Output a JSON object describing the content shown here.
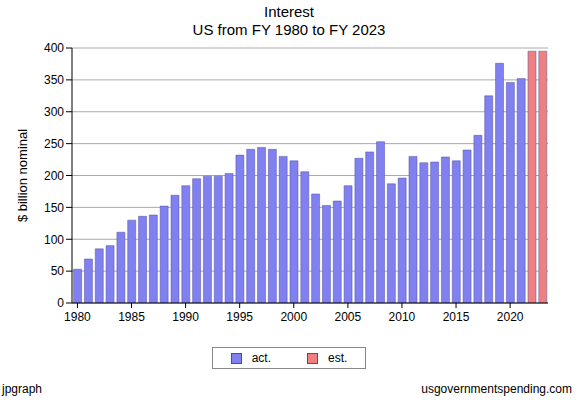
{
  "chart_data": {
    "type": "bar",
    "title": "Interest",
    "subtitle": "US from FY 1980 to FY 2023",
    "y_label": "$ billion nominal",
    "annotations": [
      "jpgraph",
      "usgovernmentspending.com"
    ],
    "categories": [
      "1980",
      null,
      null,
      null,
      null,
      "1985",
      null,
      null,
      null,
      null,
      "1990",
      null,
      null,
      null,
      null,
      "1995",
      null,
      null,
      null,
      null,
      "2000",
      null,
      null,
      null,
      null,
      "2005",
      null,
      null,
      null,
      null,
      "2010",
      null,
      null,
      null,
      null,
      "2015",
      null,
      null,
      null,
      null,
      "2020",
      null,
      null,
      null
    ],
    "series": [
      {
        "name": "act.",
        "color": "#8080f0",
        "values": [
          53,
          69,
          85,
          90,
          111,
          130,
          136,
          138,
          152,
          169,
          184,
          195,
          199,
          199,
          203,
          232,
          241,
          244,
          241,
          230,
          223,
          206,
          171,
          153,
          160,
          184,
          227,
          237,
          253,
          187,
          196,
          230,
          220,
          221,
          229,
          223,
          240,
          263,
          325,
          376,
          346,
          352,
          null,
          null
        ]
      },
      {
        "name": "est.",
        "color": "#f08080",
        "values": [
          null,
          null,
          null,
          null,
          null,
          null,
          null,
          null,
          null,
          null,
          null,
          null,
          null,
          null,
          null,
          null,
          null,
          null,
          null,
          null,
          null,
          null,
          null,
          null,
          null,
          null,
          null,
          null,
          null,
          null,
          null,
          null,
          null,
          null,
          null,
          null,
          null,
          null,
          null,
          null,
          null,
          null,
          395,
          395
        ]
      }
    ],
    "ylim": [
      0,
      400
    ],
    "yticks": [
      0,
      50,
      100,
      150,
      200,
      250,
      300,
      350,
      400
    ],
    "grid": true,
    "legend": "bottom"
  }
}
